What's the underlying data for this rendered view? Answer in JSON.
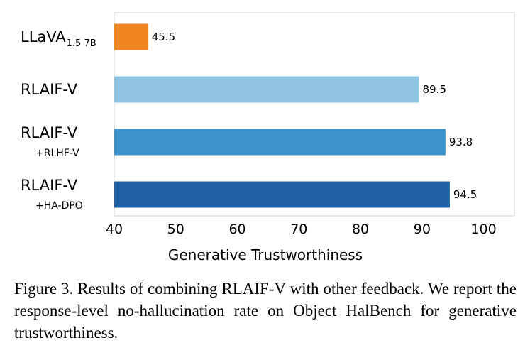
{
  "chart_data": {
    "type": "bar",
    "orientation": "horizontal",
    "categories": [
      {
        "main": "LLaVA",
        "sub_inline": "1.5 7B",
        "sub_below": ""
      },
      {
        "main": "RLAIF-V",
        "sub_inline": "",
        "sub_below": ""
      },
      {
        "main": "RLAIF-V",
        "sub_inline": "",
        "sub_below": "+RLHF-V"
      },
      {
        "main": "RLAIF-V",
        "sub_inline": "",
        "sub_below": "+HA-DPO"
      }
    ],
    "values": [
      45.5,
      89.5,
      93.8,
      94.5
    ],
    "value_labels": [
      "45.5",
      "89.5",
      "93.8",
      "94.5"
    ],
    "bar_colors": [
      "#ef8521",
      "#8fc4e2",
      "#3c93cc",
      "#1f63a6"
    ],
    "xlim": [
      40,
      105
    ],
    "xticks": [
      40,
      50,
      60,
      70,
      80,
      90,
      100
    ],
    "xtick_labels": [
      "40",
      "50",
      "60",
      "70",
      "80",
      "90",
      "100"
    ],
    "xlabel": "Generative Trustworthiness",
    "title": "",
    "grid": false,
    "legend": false
  },
  "caption": "Figure 3.  Results of combining RLAIF-V with other feedback. We report the response-level no-hallucination rate on Object HalBench for generative trustworthiness."
}
